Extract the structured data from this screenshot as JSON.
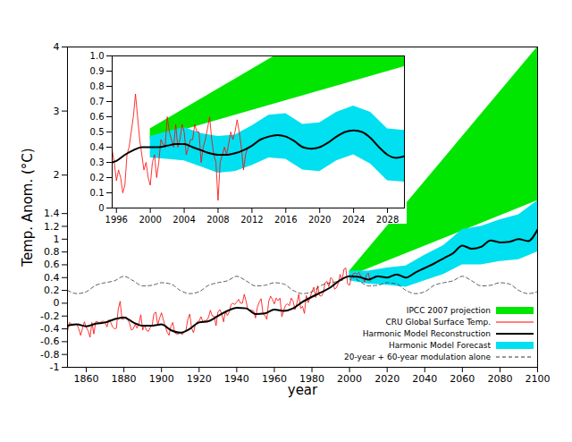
{
  "chart_data": [
    {
      "type": "line",
      "x_label": "year",
      "y_label": "Temp. Anom. (°C)",
      "xlim": [
        1850,
        2100
      ],
      "ylim": [
        -1,
        4
      ],
      "xticks": [
        1860,
        1880,
        1900,
        1920,
        1940,
        1960,
        1980,
        2000,
        2020,
        2040,
        2060,
        2080,
        2100
      ],
      "yticks": [
        -1,
        -0.8,
        -0.6,
        -0.4,
        -0.2,
        0,
        0.2,
        0.4,
        0.6,
        0.8,
        1,
        1.2,
        1.4,
        2,
        3,
        4
      ],
      "grid": false,
      "legend": "bottom-right",
      "series": [
        {
          "name": "IPCC 2007 projection",
          "type": "area",
          "color": "#00e600",
          "x": [
            2000,
            2100
          ],
          "lower": [
            0.42,
            1.6
          ],
          "upper": [
            0.5,
            4.0
          ]
        },
        {
          "name": "CRU Global Surface Temp.",
          "type": "line",
          "color": "#ff0000",
          "line_style": "solid",
          "x": [
            1850,
            1851,
            1852,
            1853,
            1854,
            1855,
            1856,
            1857,
            1858,
            1859,
            1860,
            1861,
            1862,
            1863,
            1864,
            1865,
            1866,
            1867,
            1868,
            1869,
            1870,
            1871,
            1872,
            1873,
            1874,
            1875,
            1876,
            1877,
            1878,
            1879,
            1880,
            1881,
            1882,
            1883,
            1884,
            1885,
            1886,
            1887,
            1888,
            1889,
            1890,
            1891,
            1892,
            1893,
            1894,
            1895,
            1896,
            1897,
            1898,
            1899,
            1900,
            1901,
            1902,
            1903,
            1904,
            1905,
            1906,
            1907,
            1908,
            1909,
            1910,
            1911,
            1912,
            1913,
            1914,
            1915,
            1916,
            1917,
            1918,
            1919,
            1920,
            1921,
            1922,
            1923,
            1924,
            1925,
            1926,
            1927,
            1928,
            1929,
            1930,
            1931,
            1932,
            1933,
            1934,
            1935,
            1936,
            1937,
            1938,
            1939,
            1940,
            1941,
            1942,
            1943,
            1944,
            1945,
            1946,
            1947,
            1948,
            1949,
            1950,
            1951,
            1952,
            1953,
            1954,
            1955,
            1956,
            1957,
            1958,
            1959,
            1960,
            1961,
            1962,
            1963,
            1964,
            1965,
            1966,
            1967,
            1968,
            1969,
            1970,
            1971,
            1972,
            1973,
            1974,
            1975,
            1976,
            1977,
            1978,
            1979,
            1980,
            1981,
            1982,
            1983,
            1984,
            1985,
            1986,
            1987,
            1988,
            1989,
            1990,
            1991,
            1992,
            1993,
            1994,
            1995,
            1996,
            1997,
            1998,
            1999,
            2000,
            2001,
            2002,
            2003,
            2004,
            2005,
            2006,
            2007,
            2008,
            2009,
            2010,
            2011
          ],
          "values": [
            -0.44,
            -0.3,
            -0.32,
            -0.35,
            -0.33,
            -0.33,
            -0.4,
            -0.5,
            -0.39,
            -0.29,
            -0.38,
            -0.43,
            -0.53,
            -0.3,
            -0.48,
            -0.29,
            -0.29,
            -0.31,
            -0.29,
            -0.28,
            -0.3,
            -0.37,
            -0.26,
            -0.3,
            -0.37,
            -0.4,
            -0.39,
            -0.09,
            0.03,
            -0.25,
            -0.25,
            -0.21,
            -0.25,
            -0.31,
            -0.42,
            -0.4,
            -0.33,
            -0.39,
            -0.32,
            -0.18,
            -0.42,
            -0.34,
            -0.42,
            -0.44,
            -0.38,
            -0.35,
            -0.16,
            -0.14,
            -0.34,
            -0.23,
            -0.15,
            -0.26,
            -0.36,
            -0.45,
            -0.5,
            -0.36,
            -0.3,
            -0.46,
            -0.48,
            -0.48,
            -0.45,
            -0.49,
            -0.45,
            -0.42,
            -0.25,
            -0.17,
            -0.39,
            -0.46,
            -0.33,
            -0.29,
            -0.28,
            -0.21,
            -0.29,
            -0.27,
            -0.27,
            -0.22,
            -0.11,
            -0.2,
            -0.2,
            -0.35,
            -0.14,
            -0.1,
            -0.16,
            -0.29,
            -0.13,
            -0.19,
            -0.14,
            -0.02,
            0,
            -0.02,
            0.02,
            0.06,
            0,
            0,
            0.14,
            0.03,
            -0.11,
            -0.11,
            -0.11,
            -0.12,
            -0.23,
            -0.06,
            0.02,
            0.07,
            -0.17,
            -0.19,
            -0.25,
            0.03,
            0.11,
            0.06,
            -0.01,
            0.08,
            0.04,
            0.08,
            -0.21,
            -0.11,
            -0.03,
            -0.01,
            -0.04,
            0.08,
            0.03,
            -0.1,
            0,
            0.14,
            -0.08,
            -0.05,
            -0.16,
            0.12,
            0.01,
            0.09,
            0.18,
            0.25,
            0.09,
            0.27,
            0.12,
            0.11,
            0.16,
            0.32,
            0.34,
            0.26,
            0.4,
            0.37,
            0.22,
            0.24,
            0.31,
            0.45,
            0.35,
            0.53,
            0.55,
            0.3,
            0.28,
            0.41,
            0.46,
            0.47,
            0.45,
            0.48,
            0.42,
            0.4,
            0.33,
            0.44,
            0.47,
            0.34
          ]
        },
        {
          "name": "Harmonic Model Reconstruction",
          "type": "line",
          "color": "#000000",
          "line_style": "solid",
          "x": [
            1850,
            1855,
            1860,
            1865,
            1870,
            1875,
            1880,
            1885,
            1890,
            1895,
            1900,
            1905,
            1910,
            1915,
            1920,
            1925,
            1930,
            1935,
            1940,
            1945,
            1950,
            1955,
            1960,
            1965,
            1970,
            1975,
            1980,
            1985,
            1990,
            1995,
            2000,
            2005,
            2010,
            2015,
            2020,
            2025,
            2030,
            2035,
            2040,
            2045,
            2050,
            2055,
            2060,
            2065,
            2070,
            2075,
            2080,
            2085,
            2090,
            2095,
            2100
          ],
          "values": [
            -0.35,
            -0.33,
            -0.36,
            -0.32,
            -0.3,
            -0.25,
            -0.22,
            -0.3,
            -0.35,
            -0.35,
            -0.33,
            -0.42,
            -0.46,
            -0.4,
            -0.3,
            -0.28,
            -0.2,
            -0.12,
            -0.07,
            -0.08,
            -0.17,
            -0.16,
            -0.1,
            -0.12,
            -0.08,
            0.02,
            0.1,
            0.17,
            0.25,
            0.36,
            0.42,
            0.41,
            0.37,
            0.42,
            0.4,
            0.45,
            0.4,
            0.48,
            0.55,
            0.62,
            0.7,
            0.78,
            0.9,
            0.85,
            0.88,
            0.98,
            0.95,
            0.96,
            1.0,
            0.97,
            1.15
          ]
        },
        {
          "name": "Harmonic Model Forecast",
          "type": "area",
          "color": "#00e0f0",
          "x": [
            2000,
            2010,
            2020,
            2030,
            2040,
            2050,
            2060,
            2070,
            2080,
            2090,
            2100
          ],
          "lower": [
            0.35,
            0.3,
            0.28,
            0.25,
            0.35,
            0.45,
            0.6,
            0.6,
            0.65,
            0.68,
            0.8
          ],
          "upper": [
            0.5,
            0.5,
            0.55,
            0.58,
            0.75,
            0.9,
            1.15,
            1.2,
            1.3,
            1.38,
            1.6
          ]
        },
        {
          "name": "20-year + 60-year modulation alone",
          "type": "line",
          "color": "#333333",
          "line_style": "dashed",
          "x": [
            1850,
            1855,
            1860,
            1865,
            1870,
            1875,
            1880,
            1885,
            1890,
            1895,
            1900,
            1905,
            1910,
            1915,
            1920,
            1925,
            1930,
            1935,
            1940,
            1945,
            1950,
            1955,
            1960,
            1965,
            1970,
            1975,
            1980,
            1985,
            1990,
            1995,
            2000,
            2005,
            2010,
            2015,
            2020,
            2025,
            2030,
            2035,
            2040,
            2045,
            2050,
            2055,
            2060,
            2065,
            2070,
            2075,
            2080,
            2085,
            2090,
            2095,
            2100
          ],
          "values": [
            0.2,
            0.15,
            0.18,
            0.28,
            0.32,
            0.35,
            0.42,
            0.35,
            0.27,
            0.28,
            0.32,
            0.3,
            0.2,
            0.15,
            0.18,
            0.28,
            0.32,
            0.35,
            0.42,
            0.35,
            0.27,
            0.28,
            0.32,
            0.3,
            0.2,
            0.15,
            0.18,
            0.28,
            0.32,
            0.35,
            0.42,
            0.35,
            0.27,
            0.28,
            0.32,
            0.3,
            0.2,
            0.15,
            0.18,
            0.28,
            0.32,
            0.35,
            0.42,
            0.35,
            0.27,
            0.28,
            0.32,
            0.3,
            0.2,
            0.15,
            0.18
          ]
        }
      ]
    },
    {
      "type": "line",
      "xlim": [
        1995.5,
        2030
      ],
      "ylim": [
        0,
        1
      ],
      "xticks": [
        1996,
        2000,
        2004,
        2008,
        2012,
        2016,
        2020,
        2024,
        2028
      ],
      "yticks": [
        0,
        0.1,
        0.2,
        0.3,
        0.4,
        0.5,
        0.6,
        0.7,
        0.8,
        0.9,
        {
          "value": 1,
          "label": "1.0"
        }
      ],
      "grid": false,
      "series": [
        {
          "name": "IPCC 2007 projection",
          "type": "area",
          "color": "#00e600",
          "x": [
            2000,
            2030
          ],
          "lower": [
            0.45,
            0.93
          ],
          "upper": [
            0.52,
            1.5
          ]
        },
        {
          "name": "CRU Global Surface Temp.",
          "type": "line",
          "color": "#ff0000",
          "line_style": "solid",
          "x": [
            1995.5,
            1995.75,
            1996,
            1996.25,
            1996.5,
            1996.75,
            1997,
            1997.25,
            1997.5,
            1997.75,
            1998,
            1998.25,
            1998.5,
            1998.75,
            1999,
            1999.25,
            1999.5,
            1999.75,
            2000,
            2000.25,
            2000.5,
            2000.75,
            2001,
            2001.25,
            2001.5,
            2001.75,
            2002,
            2002.25,
            2002.5,
            2002.75,
            2003,
            2003.25,
            2003.5,
            2003.75,
            2004,
            2004.25,
            2004.5,
            2004.75,
            2005,
            2005.25,
            2005.5,
            2005.75,
            2006,
            2006.25,
            2006.5,
            2006.75,
            2007,
            2007.25,
            2007.5,
            2007.75,
            2008,
            2008.25,
            2008.5,
            2008.75,
            2009,
            2009.25,
            2009.5,
            2009.75,
            2010,
            2010.25,
            2010.5,
            2010.75,
            2011,
            2011.25,
            2011.5
          ],
          "values": [
            0.38,
            0.3,
            0.18,
            0.25,
            0.2,
            0.1,
            0.15,
            0.35,
            0.4,
            0.5,
            0.6,
            0.75,
            0.6,
            0.45,
            0.35,
            0.25,
            0.3,
            0.2,
            0.15,
            0.3,
            0.35,
            0.2,
            0.3,
            0.45,
            0.42,
            0.4,
            0.6,
            0.5,
            0.45,
            0.4,
            0.55,
            0.4,
            0.45,
            0.55,
            0.5,
            0.35,
            0.4,
            0.45,
            0.45,
            0.55,
            0.5,
            0.5,
            0.3,
            0.4,
            0.45,
            0.52,
            0.6,
            0.45,
            0.35,
            0.3,
            0.05,
            0.3,
            0.35,
            0.4,
            0.35,
            0.42,
            0.5,
            0.45,
            0.5,
            0.58,
            0.5,
            0.4,
            0.25,
            0.35,
            0.4
          ]
        },
        {
          "name": "Harmonic Model Reconstruction",
          "type": "line",
          "color": "#000000",
          "line_style": "solid",
          "x": [
            1995.5,
            1996,
            1997,
            1998,
            1999,
            2000,
            2001,
            2002,
            2003,
            2004,
            2005,
            2006,
            2007,
            2008,
            2009,
            2010,
            2011,
            2012,
            2013,
            2014,
            2015,
            2016,
            2017,
            2018,
            2019,
            2020,
            2021,
            2022,
            2023,
            2024,
            2025,
            2026,
            2027,
            2028,
            2029,
            2030
          ],
          "values": [
            0.3,
            0.31,
            0.35,
            0.38,
            0.4,
            0.4,
            0.4,
            0.41,
            0.42,
            0.42,
            0.4,
            0.38,
            0.36,
            0.35,
            0.35,
            0.36,
            0.38,
            0.41,
            0.45,
            0.47,
            0.48,
            0.47,
            0.44,
            0.4,
            0.39,
            0.4,
            0.43,
            0.47,
            0.5,
            0.51,
            0.5,
            0.46,
            0.4,
            0.35,
            0.33,
            0.34
          ]
        },
        {
          "name": "Harmonic Model Forecast",
          "type": "area",
          "color": "#00e0f0",
          "x": [
            2000,
            2002,
            2004,
            2006,
            2008,
            2010,
            2012,
            2014,
            2016,
            2018,
            2020,
            2022,
            2024,
            2026,
            2028,
            2030
          ],
          "lower": [
            0.33,
            0.32,
            0.31,
            0.27,
            0.23,
            0.24,
            0.28,
            0.33,
            0.32,
            0.25,
            0.24,
            0.31,
            0.35,
            0.29,
            0.18,
            0.17
          ],
          "upper": [
            0.47,
            0.5,
            0.53,
            0.49,
            0.47,
            0.48,
            0.54,
            0.61,
            0.62,
            0.55,
            0.56,
            0.63,
            0.67,
            0.63,
            0.52,
            0.51
          ]
        }
      ]
    }
  ]
}
